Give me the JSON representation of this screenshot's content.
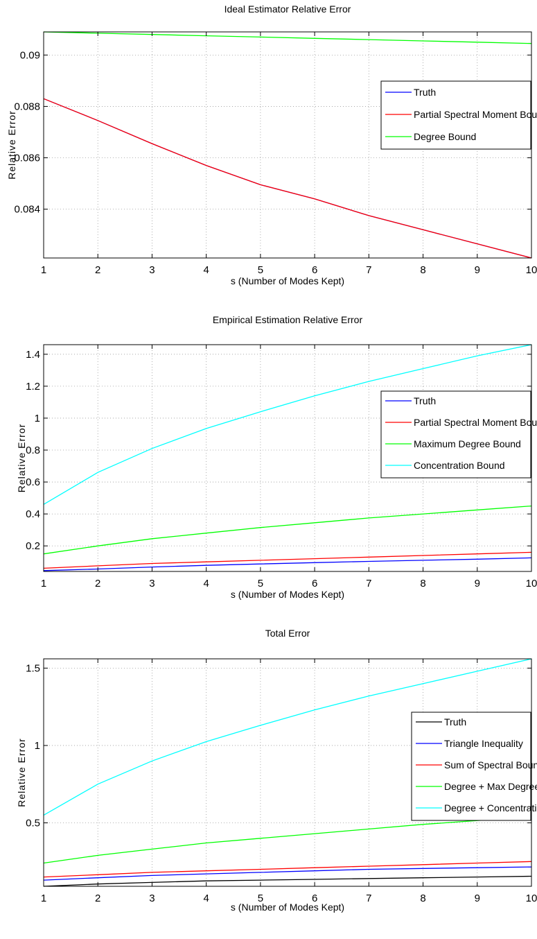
{
  "chart_data": [
    {
      "type": "line",
      "title": "Ideal Estimator Relative Error",
      "xlabel": "s (Number of Modes Kept)",
      "ylabel": "Relative Error",
      "xlim": [
        1,
        10
      ],
      "ylim": [
        0.0821,
        0.0909
      ],
      "xticks": [
        1,
        2,
        3,
        4,
        5,
        6,
        7,
        8,
        9,
        10
      ],
      "xtick_labels": [
        "1",
        "2",
        "3",
        "4",
        "5",
        "6",
        "7",
        "8",
        "9",
        "10"
      ],
      "yticks": [
        0.084,
        0.086,
        0.088,
        0.09
      ],
      "ytick_labels": [
        "0.084",
        "0.086",
        "0.088",
        "0.09"
      ],
      "grid": true,
      "legend_position": "upper-right",
      "x": [
        1,
        2,
        3,
        4,
        5,
        6,
        7,
        8,
        9,
        10
      ],
      "series": [
        {
          "name": "Truth",
          "color": "#0000ff",
          "values": [
            0.0883,
            0.08745,
            0.08655,
            0.0857,
            0.08495,
            0.0844,
            0.08375,
            0.0832,
            0.08265,
            0.0821
          ]
        },
        {
          "name": "Partial Spectral Moment Bound",
          "color": "#ff0000",
          "values": [
            0.0883,
            0.08745,
            0.08655,
            0.0857,
            0.08495,
            0.0844,
            0.08375,
            0.0832,
            0.08265,
            0.0821
          ]
        },
        {
          "name": "Degree Bound",
          "color": "#00ff00",
          "values": [
            0.0909,
            0.09085,
            0.0908,
            0.09075,
            0.0907,
            0.09065,
            0.0906,
            0.09055,
            0.0905,
            0.09045
          ]
        }
      ]
    },
    {
      "type": "line",
      "title": "Empirical Estimation Relative Error",
      "xlabel": "s (Number of Modes Kept)",
      "ylabel": "Relative Error",
      "xlim": [
        1,
        10
      ],
      "ylim": [
        0.04,
        1.46
      ],
      "xticks": [
        1,
        2,
        3,
        4,
        5,
        6,
        7,
        8,
        9,
        10
      ],
      "xtick_labels": [
        "1",
        "2",
        "3",
        "4",
        "5",
        "6",
        "7",
        "8",
        "9",
        "10"
      ],
      "yticks": [
        0.2,
        0.4,
        0.6,
        0.8,
        1,
        1.2,
        1.4
      ],
      "ytick_labels": [
        "0.2",
        "0.4",
        "0.6",
        "0.8",
        "1",
        "1.2",
        "1.4"
      ],
      "grid": true,
      "legend_position": "right",
      "x": [
        1,
        2,
        3,
        4,
        5,
        6,
        7,
        8,
        9,
        10
      ],
      "series": [
        {
          "name": "Truth",
          "color": "#0000ff",
          "values": [
            0.045,
            0.055,
            0.068,
            0.078,
            0.087,
            0.095,
            0.103,
            0.11,
            0.117,
            0.125
          ]
        },
        {
          "name": "Partial Spectral Moment Bound",
          "color": "#ff0000",
          "values": [
            0.06,
            0.075,
            0.09,
            0.1,
            0.11,
            0.12,
            0.13,
            0.14,
            0.15,
            0.16
          ]
        },
        {
          "name": "Maximum Degree Bound",
          "color": "#00ff00",
          "values": [
            0.15,
            0.2,
            0.245,
            0.28,
            0.315,
            0.345,
            0.375,
            0.4,
            0.425,
            0.45
          ]
        },
        {
          "name": "Concentration Bound",
          "color": "#00ffff",
          "values": [
            0.46,
            0.66,
            0.81,
            0.935,
            1.04,
            1.14,
            1.23,
            1.31,
            1.39,
            1.46
          ]
        }
      ]
    },
    {
      "type": "line",
      "title": "Total Error",
      "xlabel": "s (Number of Modes Kept)",
      "ylabel": "Relative Error",
      "xlim": [
        1,
        10
      ],
      "ylim": [
        0.09,
        1.56
      ],
      "xticks": [
        1,
        2,
        3,
        4,
        5,
        6,
        7,
        8,
        9,
        10
      ],
      "xtick_labels": [
        "1",
        "2",
        "3",
        "4",
        "5",
        "6",
        "7",
        "8",
        "9",
        "10"
      ],
      "yticks": [
        0.5,
        1,
        1.5
      ],
      "ytick_labels": [
        "0.5",
        "1",
        "1.5"
      ],
      "grid": true,
      "legend_position": "upper-right",
      "x": [
        1,
        2,
        3,
        4,
        5,
        6,
        7,
        8,
        9,
        10
      ],
      "series": [
        {
          "name": "Truth",
          "color": "#000000",
          "values": [
            0.09,
            0.105,
            0.115,
            0.125,
            0.13,
            0.135,
            0.14,
            0.145,
            0.15,
            0.155
          ]
        },
        {
          "name": "Triangle Inequality",
          "color": "#0000ff",
          "values": [
            0.13,
            0.145,
            0.16,
            0.17,
            0.18,
            0.19,
            0.2,
            0.205,
            0.21,
            0.215
          ]
        },
        {
          "name": "Sum of Spectral Bounds",
          "color": "#ff0000",
          "values": [
            0.15,
            0.165,
            0.18,
            0.19,
            0.2,
            0.21,
            0.22,
            0.23,
            0.24,
            0.25
          ]
        },
        {
          "name": "Degree + Max Degree",
          "color": "#00ff00",
          "values": [
            0.24,
            0.29,
            0.33,
            0.37,
            0.4,
            0.43,
            0.46,
            0.49,
            0.515,
            0.54
          ]
        },
        {
          "name": "Degree + Concentration",
          "color": "#00ffff",
          "values": [
            0.55,
            0.75,
            0.9,
            1.025,
            1.13,
            1.23,
            1.32,
            1.4,
            1.48,
            1.56
          ]
        }
      ]
    }
  ]
}
